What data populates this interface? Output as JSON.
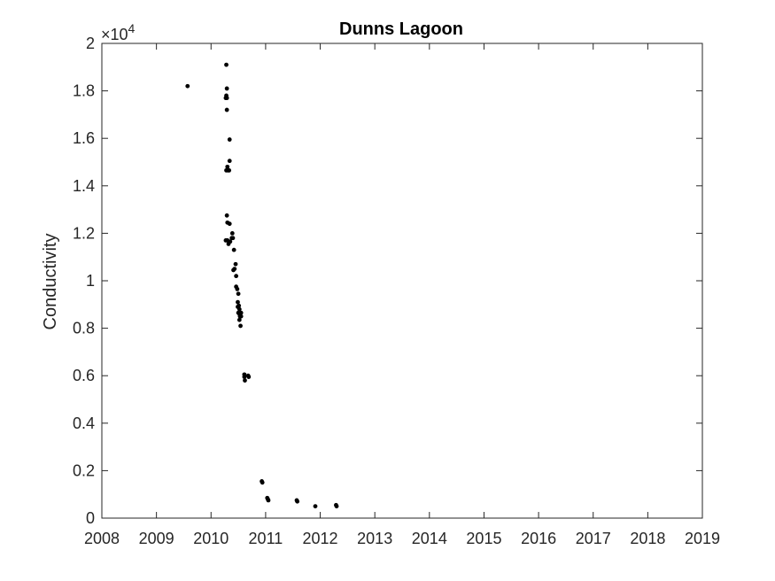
{
  "chart_data": {
    "type": "scatter",
    "title": "Dunns Lagoon",
    "xlabel": "",
    "ylabel": "Conductivity",
    "y_multiplier_label": "×10",
    "y_multiplier_exponent": "4",
    "xlim": [
      2008,
      2019
    ],
    "ylim": [
      0,
      2
    ],
    "xticks": [
      "2008",
      "2009",
      "2010",
      "2011",
      "2012",
      "2013",
      "2014",
      "2015",
      "2016",
      "2017",
      "2018",
      "2019"
    ],
    "yticks": [
      "0",
      "0.2",
      "0.4",
      "0.6",
      "0.8",
      "1",
      "1.2",
      "1.4",
      "1.6",
      "1.8",
      "2"
    ],
    "grid": false,
    "marker_color": "#000000",
    "series": [
      {
        "points": [
          [
            2009.57,
            1.82
          ],
          [
            2010.28,
            1.91
          ],
          [
            2010.29,
            1.81
          ],
          [
            2010.28,
            1.78
          ],
          [
            2010.29,
            1.77
          ],
          [
            2010.27,
            1.77
          ],
          [
            2010.29,
            1.72
          ],
          [
            2010.34,
            1.595
          ],
          [
            2010.34,
            1.505
          ],
          [
            2010.3,
            1.48
          ],
          [
            2010.28,
            1.465
          ],
          [
            2010.31,
            1.465
          ],
          [
            2010.33,
            1.465
          ],
          [
            2010.29,
            1.275
          ],
          [
            2010.3,
            1.245
          ],
          [
            2010.34,
            1.24
          ],
          [
            2010.39,
            1.2
          ],
          [
            2010.38,
            1.18
          ],
          [
            2010.4,
            1.18
          ],
          [
            2010.27,
            1.17
          ],
          [
            2010.3,
            1.17
          ],
          [
            2010.32,
            1.155
          ],
          [
            2010.35,
            1.165
          ],
          [
            2010.42,
            1.13
          ],
          [
            2010.45,
            1.07
          ],
          [
            2010.43,
            1.05
          ],
          [
            2010.41,
            1.045
          ],
          [
            2010.46,
            1.02
          ],
          [
            2010.46,
            0.975
          ],
          [
            2010.48,
            0.965
          ],
          [
            2010.5,
            0.945
          ],
          [
            2010.49,
            0.91
          ],
          [
            2010.49,
            0.89
          ],
          [
            2010.51,
            0.895
          ],
          [
            2010.52,
            0.88
          ],
          [
            2010.5,
            0.865
          ],
          [
            2010.52,
            0.86
          ],
          [
            2010.55,
            0.865
          ],
          [
            2010.53,
            0.85
          ],
          [
            2010.55,
            0.85
          ],
          [
            2010.52,
            0.835
          ],
          [
            2010.54,
            0.81
          ],
          [
            2010.61,
            0.605
          ],
          [
            2010.61,
            0.595
          ],
          [
            2010.62,
            0.58
          ],
          [
            2010.68,
            0.6
          ],
          [
            2010.69,
            0.595
          ],
          [
            2010.93,
            0.155
          ],
          [
            2010.94,
            0.15
          ],
          [
            2011.03,
            0.085
          ],
          [
            2011.04,
            0.08
          ],
          [
            2011.05,
            0.075
          ],
          [
            2011.57,
            0.075
          ],
          [
            2011.58,
            0.07
          ],
          [
            2011.91,
            0.05
          ],
          [
            2012.29,
            0.055
          ],
          [
            2012.3,
            0.05
          ]
        ]
      }
    ]
  }
}
